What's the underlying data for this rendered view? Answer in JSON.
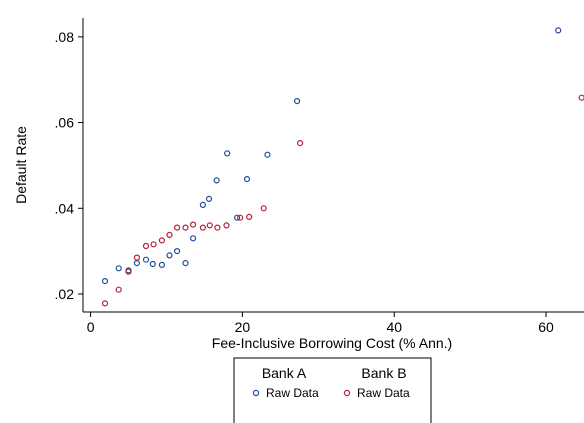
{
  "chart_data": {
    "type": "scatter",
    "xlabel": "Fee-Inclusive Borrowing Cost (% Ann.)",
    "ylabel": "Default Rate",
    "xlim": [
      -1,
      65
    ],
    "ylim": [
      0.0158,
      0.0844
    ],
    "x_ticks": [
      0,
      20,
      40,
      60
    ],
    "x_tick_labels": [
      "0",
      "20",
      "40",
      "60"
    ],
    "y_ticks": [
      0.02,
      0.04,
      0.06,
      0.08
    ],
    "y_tick_labels": [
      ".02",
      ".04",
      ".06",
      ".08"
    ],
    "grid": false,
    "legend_position": "bottom",
    "series": [
      {
        "group": "Bank A",
        "name": "Raw Data",
        "color": "#1f4e9c",
        "points": [
          [
            1.9,
            0.023
          ],
          [
            3.7,
            0.026
          ],
          [
            5.0,
            0.0255
          ],
          [
            6.1,
            0.0272
          ],
          [
            7.3,
            0.028
          ],
          [
            8.2,
            0.027
          ],
          [
            9.4,
            0.0268
          ],
          [
            10.4,
            0.029
          ],
          [
            11.4,
            0.03
          ],
          [
            12.5,
            0.0272
          ],
          [
            13.5,
            0.033
          ],
          [
            14.8,
            0.0408
          ],
          [
            15.6,
            0.0422
          ],
          [
            16.6,
            0.0465
          ],
          [
            18.0,
            0.0528
          ],
          [
            19.3,
            0.0378
          ],
          [
            20.6,
            0.0468
          ],
          [
            23.3,
            0.0525
          ],
          [
            27.2,
            0.065
          ],
          [
            61.6,
            0.0815
          ]
        ]
      },
      {
        "group": "Bank B",
        "name": "Raw Data",
        "color": "#b5213a",
        "points": [
          [
            1.9,
            0.0178
          ],
          [
            3.7,
            0.021
          ],
          [
            5.0,
            0.0252
          ],
          [
            6.1,
            0.0285
          ],
          [
            7.3,
            0.0312
          ],
          [
            8.3,
            0.0316
          ],
          [
            9.4,
            0.0325
          ],
          [
            10.4,
            0.0338
          ],
          [
            11.4,
            0.0355
          ],
          [
            12.5,
            0.0355
          ],
          [
            13.5,
            0.0362
          ],
          [
            14.8,
            0.0355
          ],
          [
            15.7,
            0.036
          ],
          [
            16.7,
            0.0355
          ],
          [
            17.9,
            0.036
          ],
          [
            19.7,
            0.0378
          ],
          [
            20.9,
            0.038
          ],
          [
            22.8,
            0.04
          ],
          [
            27.6,
            0.0552
          ],
          [
            64.7,
            0.0658
          ]
        ]
      }
    ]
  }
}
